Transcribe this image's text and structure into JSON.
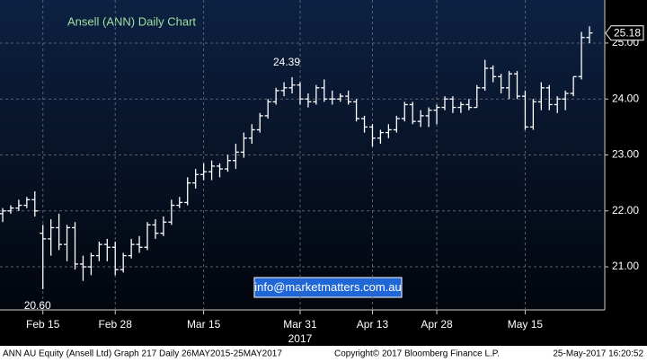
{
  "chart_data": {
    "type": "ohlc",
    "title": "Ansell (ANN) Daily Chart",
    "year_label": "2017",
    "email": "info@marketmatters.com.au",
    "footer_left": "ANN AU Equity (Ansell Ltd) Graph 217  Daily 26MAY2015-25MAY2017",
    "footer_center": "Copyright© 2017 Bloomberg Finance L.P.",
    "footer_right": "25-May-2017 16:20:52",
    "color": "#ffffff",
    "grid": true,
    "ylim": [
      20.23,
      25.77
    ],
    "yticks": [
      {
        "value": 21,
        "label": "21.00"
      },
      {
        "value": 22,
        "label": "22.00"
      },
      {
        "value": 23,
        "label": "23.00"
      },
      {
        "value": 24,
        "label": "24.00"
      },
      {
        "value": 25,
        "label": "25.00"
      }
    ],
    "xticks": [
      {
        "value": "2017-02-15",
        "label": "Feb 15"
      },
      {
        "value": "2017-02-28",
        "label": "Feb 28"
      },
      {
        "value": "2017-03-15",
        "label": "Mar 15"
      },
      {
        "value": "2017-03-31",
        "label": "Mar 31"
      },
      {
        "value": "2017-04-13",
        "label": "Apr 13"
      },
      {
        "value": "2017-04-28",
        "label": "Apr 28"
      },
      {
        "value": "2017-05-15",
        "label": "May 15"
      }
    ],
    "annotations": [
      {
        "label": "24.39",
        "x": "2017-03-30",
        "value": 24.39
      },
      {
        "label": "20.60",
        "x": "2017-02-15",
        "value": 20.6
      }
    ],
    "x": [
      "2017-02-08",
      "2017-02-09",
      "2017-02-10",
      "2017-02-13",
      "2017-02-14",
      "2017-02-15",
      "2017-02-16",
      "2017-02-17",
      "2017-02-20",
      "2017-02-21",
      "2017-02-22",
      "2017-02-23",
      "2017-02-24",
      "2017-02-27",
      "2017-02-28",
      "2017-03-01",
      "2017-03-02",
      "2017-03-03",
      "2017-03-06",
      "2017-03-07",
      "2017-03-08",
      "2017-03-09",
      "2017-03-10",
      "2017-03-13",
      "2017-03-14",
      "2017-03-15",
      "2017-03-16",
      "2017-03-17",
      "2017-03-20",
      "2017-03-21",
      "2017-03-22",
      "2017-03-23",
      "2017-03-24",
      "2017-03-27",
      "2017-03-28",
      "2017-03-29",
      "2017-03-30",
      "2017-03-31",
      "2017-04-03",
      "2017-04-04",
      "2017-04-05",
      "2017-04-06",
      "2017-04-07",
      "2017-04-10",
      "2017-04-11",
      "2017-04-12",
      "2017-04-13",
      "2017-04-18",
      "2017-04-19",
      "2017-04-20",
      "2017-04-21",
      "2017-04-24",
      "2017-04-26",
      "2017-04-27",
      "2017-04-28",
      "2017-05-01",
      "2017-05-02",
      "2017-05-03",
      "2017-05-04",
      "2017-05-05",
      "2017-05-08",
      "2017-05-09",
      "2017-05-10",
      "2017-05-11",
      "2017-05-12",
      "2017-05-15",
      "2017-05-16",
      "2017-05-17",
      "2017-05-18",
      "2017-05-19",
      "2017-05-22",
      "2017-05-23",
      "2017-05-24",
      "2017-05-25"
    ],
    "open": [
      21.95,
      22.0,
      22.05,
      22.1,
      22.2,
      21.6,
      21.5,
      21.7,
      21.4,
      21.7,
      21.05,
      21.0,
      21.2,
      21.4,
      21.35,
      20.95,
      21.2,
      21.4,
      21.35,
      21.75,
      21.6,
      21.8,
      22.1,
      22.15,
      22.5,
      22.65,
      22.7,
      22.8,
      22.75,
      22.9,
      23.05,
      23.3,
      23.45,
      23.7,
      23.95,
      24.15,
      24.2,
      24.25,
      24.0,
      23.95,
      24.2,
      24.0,
      24.0,
      24.05,
      23.95,
      23.65,
      23.5,
      23.3,
      23.4,
      23.45,
      23.65,
      23.9,
      23.6,
      23.7,
      23.8,
      23.85,
      24.0,
      23.85,
      23.9,
      23.85,
      24.2,
      24.55,
      24.4,
      24.2,
      24.45,
      24.05,
      23.5,
      23.95,
      24.2,
      23.9,
      24.0,
      24.1,
      24.4,
      25.1
    ],
    "high": [
      22.05,
      22.1,
      22.2,
      22.25,
      22.35,
      21.75,
      21.85,
      21.95,
      21.75,
      21.8,
      21.2,
      21.25,
      21.45,
      21.5,
      21.45,
      21.25,
      21.5,
      21.55,
      21.8,
      21.85,
      21.9,
      22.2,
      22.25,
      22.6,
      22.75,
      22.85,
      22.9,
      22.85,
      23.0,
      23.2,
      23.4,
      23.55,
      23.75,
      24.0,
      24.2,
      24.3,
      24.39,
      24.3,
      24.1,
      24.25,
      24.35,
      24.15,
      24.1,
      24.15,
      24.0,
      23.7,
      23.55,
      23.45,
      23.55,
      23.7,
      23.95,
      23.95,
      23.8,
      23.85,
      23.9,
      24.05,
      24.05,
      23.95,
      24.0,
      24.25,
      24.7,
      24.6,
      24.45,
      24.5,
      24.5,
      24.15,
      24.0,
      24.3,
      24.25,
      24.05,
      24.15,
      24.4,
      25.2,
      25.3
    ],
    "low": [
      21.8,
      21.95,
      22.0,
      22.05,
      21.9,
      20.6,
      21.2,
      21.3,
      21.1,
      20.95,
      20.75,
      20.85,
      21.1,
      21.1,
      20.85,
      20.9,
      21.15,
      21.25,
      21.3,
      21.5,
      21.55,
      21.75,
      22.05,
      22.1,
      22.4,
      22.55,
      22.55,
      22.6,
      22.7,
      22.75,
      22.95,
      23.2,
      23.4,
      23.65,
      23.9,
      24.05,
      24.1,
      23.9,
      23.85,
      23.9,
      23.95,
      23.9,
      23.95,
      23.9,
      23.6,
      23.4,
      23.15,
      23.2,
      23.3,
      23.4,
      23.6,
      23.55,
      23.5,
      23.5,
      23.55,
      23.8,
      23.75,
      23.75,
      23.8,
      23.85,
      24.15,
      24.3,
      24.1,
      24.0,
      24.0,
      23.45,
      23.45,
      23.8,
      23.8,
      23.75,
      23.8,
      24.05,
      24.35,
      25.0
    ],
    "close": [
      22.0,
      22.05,
      22.1,
      22.2,
      22.0,
      21.5,
      21.7,
      21.4,
      21.7,
      21.05,
      21.0,
      21.2,
      21.4,
      21.35,
      20.95,
      21.2,
      21.4,
      21.35,
      21.75,
      21.6,
      21.8,
      22.1,
      22.15,
      22.5,
      22.65,
      22.7,
      22.8,
      22.75,
      22.9,
      23.05,
      23.3,
      23.45,
      23.7,
      23.95,
      24.15,
      24.2,
      24.25,
      24.0,
      23.95,
      24.2,
      24.0,
      24.0,
      24.05,
      23.95,
      23.65,
      23.5,
      23.3,
      23.4,
      23.45,
      23.65,
      23.9,
      23.6,
      23.7,
      23.8,
      23.85,
      24.0,
      23.85,
      23.9,
      23.85,
      24.2,
      24.55,
      24.4,
      24.2,
      24.45,
      24.05,
      23.5,
      23.95,
      24.2,
      23.9,
      24.0,
      24.1,
      24.4,
      25.1,
      25.18
    ]
  }
}
